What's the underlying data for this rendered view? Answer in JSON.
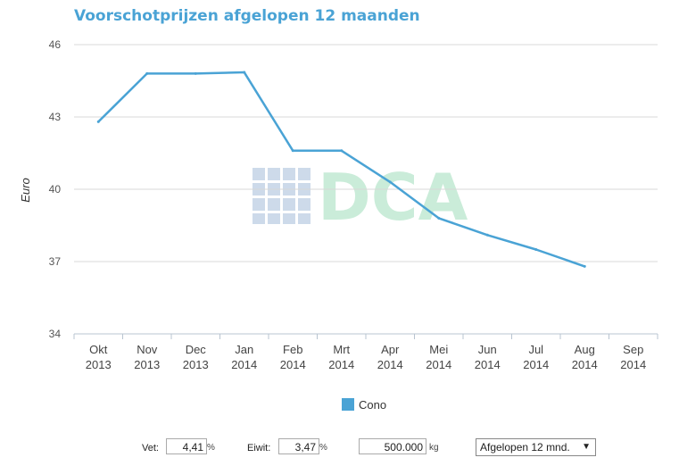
{
  "chart_data": {
    "type": "line",
    "title": "Voorschotprijzen afgelopen 12 maanden",
    "ylabel": "Euro",
    "xlabel": "",
    "ylim": [
      34,
      46
    ],
    "yticks": [
      34,
      37,
      40,
      43,
      46
    ],
    "categories": [
      [
        "Okt",
        "2013"
      ],
      [
        "Nov",
        "2013"
      ],
      [
        "Dec",
        "2013"
      ],
      [
        "Jan",
        "2014"
      ],
      [
        "Feb",
        "2014"
      ],
      [
        "Mrt",
        "2014"
      ],
      [
        "Apr",
        "2014"
      ],
      [
        "Mei",
        "2014"
      ],
      [
        "Jun",
        "2014"
      ],
      [
        "Jul",
        "2014"
      ],
      [
        "Aug",
        "2014"
      ],
      [
        "Sep",
        "2014"
      ]
    ],
    "series": [
      {
        "name": "Cono",
        "color": "#4aa3d5",
        "values": [
          42.8,
          44.8,
          44.8,
          44.85,
          41.6,
          41.6,
          40.3,
          38.8,
          38.1,
          37.5,
          36.8,
          null
        ]
      }
    ],
    "grid": true,
    "legend_position": "bottom-center",
    "watermark": "DCA"
  },
  "controls": {
    "vet_label": "Vet:",
    "vet_value": "4,41",
    "vet_unit": "%",
    "eiwit_label": "Eiwit:",
    "eiwit_value": "3,47",
    "eiwit_unit": "%",
    "kg_value": "500.000",
    "kg_unit": "kg",
    "period_selected": "Afgelopen 12 mnd."
  }
}
